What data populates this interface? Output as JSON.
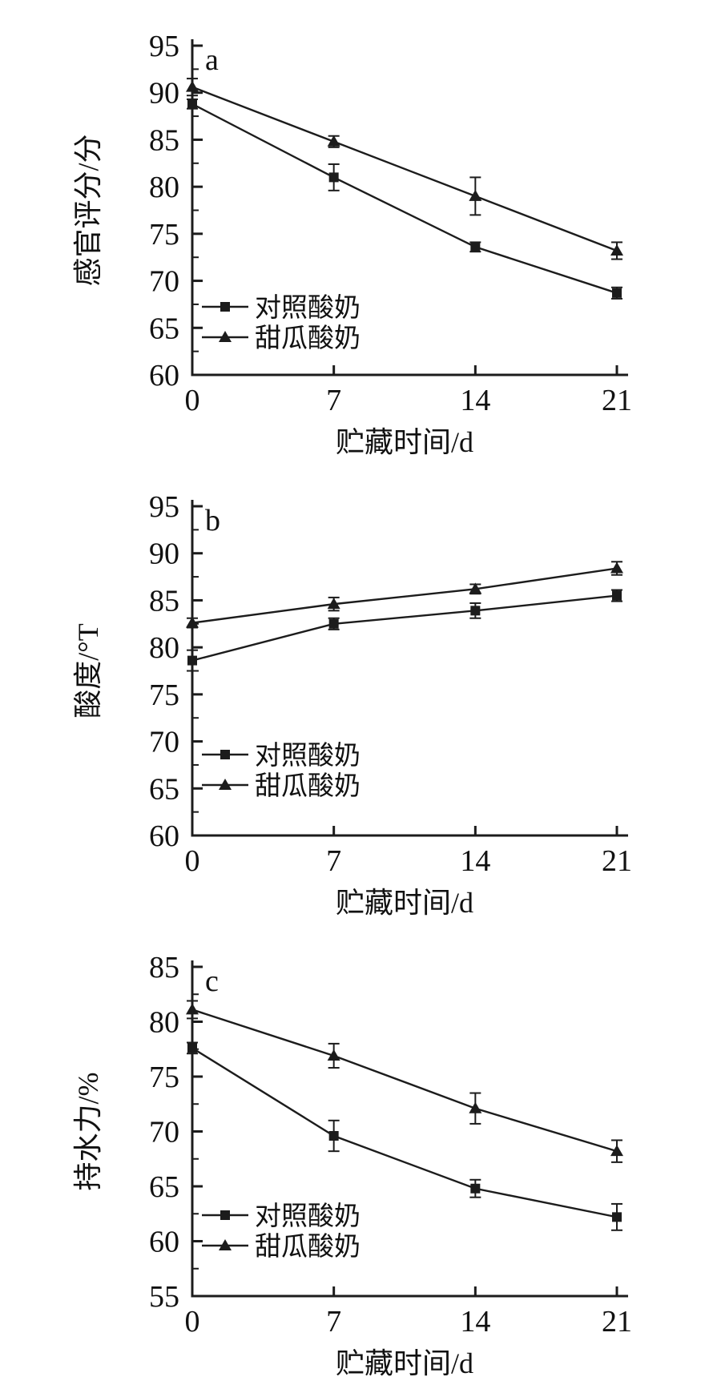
{
  "page": {
    "background": "#ffffff"
  },
  "colors": {
    "line": "#1c1c1c",
    "text": "#111111"
  },
  "chart_data": [
    {
      "type": "line",
      "panel_label": "a",
      "title": "",
      "xlabel": "贮藏时间/d",
      "ylabel": "感官评分/分",
      "x": [
        0,
        7,
        14,
        21
      ],
      "xlim": [
        0,
        21
      ],
      "ylim": [
        60,
        95
      ],
      "ytick_step": 5,
      "ytick_minor_step": 2.5,
      "ytick_labels": [
        "60",
        "65",
        "70",
        "75",
        "80",
        "85",
        "90",
        "95"
      ],
      "xtick_labels": [
        "0",
        "7",
        "14",
        "21"
      ],
      "grid": false,
      "legend_position": "lower-left",
      "series": [
        {
          "name": "对照酸奶",
          "marker": "square",
          "values": [
            88.8,
            81.0,
            73.6,
            68.7
          ],
          "errors": [
            0.5,
            1.4,
            0.5,
            0.6
          ]
        },
        {
          "name": "甜瓜酸奶",
          "marker": "triangle",
          "values": [
            90.6,
            84.8,
            79.0,
            73.2
          ],
          "errors": [
            0.9,
            0.6,
            2.0,
            0.9
          ]
        }
      ]
    },
    {
      "type": "line",
      "panel_label": "b",
      "title": "",
      "xlabel": "贮藏时间/d",
      "ylabel": "酸度/°T",
      "x": [
        0,
        7,
        14,
        21
      ],
      "xlim": [
        0,
        21
      ],
      "ylim": [
        60,
        95
      ],
      "ytick_step": 5,
      "ytick_minor_step": 2.5,
      "ytick_labels": [
        "60",
        "65",
        "70",
        "75",
        "80",
        "85",
        "90",
        "95"
      ],
      "xtick_labels": [
        "0",
        "7",
        "14",
        "21"
      ],
      "grid": false,
      "legend_position": "lower-left",
      "series": [
        {
          "name": "对照酸奶",
          "marker": "square",
          "values": [
            78.6,
            82.5,
            83.9,
            85.5
          ],
          "errors": [
            1.1,
            0.6,
            0.8,
            0.6
          ]
        },
        {
          "name": "甜瓜酸奶",
          "marker": "triangle",
          "values": [
            82.6,
            84.6,
            86.2,
            88.4
          ],
          "errors": [
            0.5,
            0.7,
            0.5,
            0.7
          ]
        }
      ]
    },
    {
      "type": "line",
      "panel_label": "c",
      "title": "",
      "xlabel": "贮藏时间/d",
      "ylabel": "持水力/%",
      "x": [
        0,
        7,
        14,
        21
      ],
      "xlim": [
        0,
        21
      ],
      "ylim": [
        55,
        85
      ],
      "ytick_step": 5,
      "ytick_minor_step": 2.5,
      "ytick_labels": [
        "55",
        "60",
        "65",
        "70",
        "75",
        "80",
        "85"
      ],
      "xtick_labels": [
        "0",
        "7",
        "14",
        "21"
      ],
      "grid": false,
      "legend_position": "lower-left",
      "series": [
        {
          "name": "对照酸奶",
          "marker": "square",
          "values": [
            77.6,
            69.6,
            64.8,
            62.2
          ],
          "errors": [
            0.5,
            1.4,
            0.8,
            1.2
          ]
        },
        {
          "name": "甜瓜酸奶",
          "marker": "triangle",
          "values": [
            81.1,
            76.9,
            72.1,
            68.2
          ],
          "errors": [
            0.8,
            1.1,
            1.4,
            1.0
          ]
        }
      ]
    }
  ]
}
